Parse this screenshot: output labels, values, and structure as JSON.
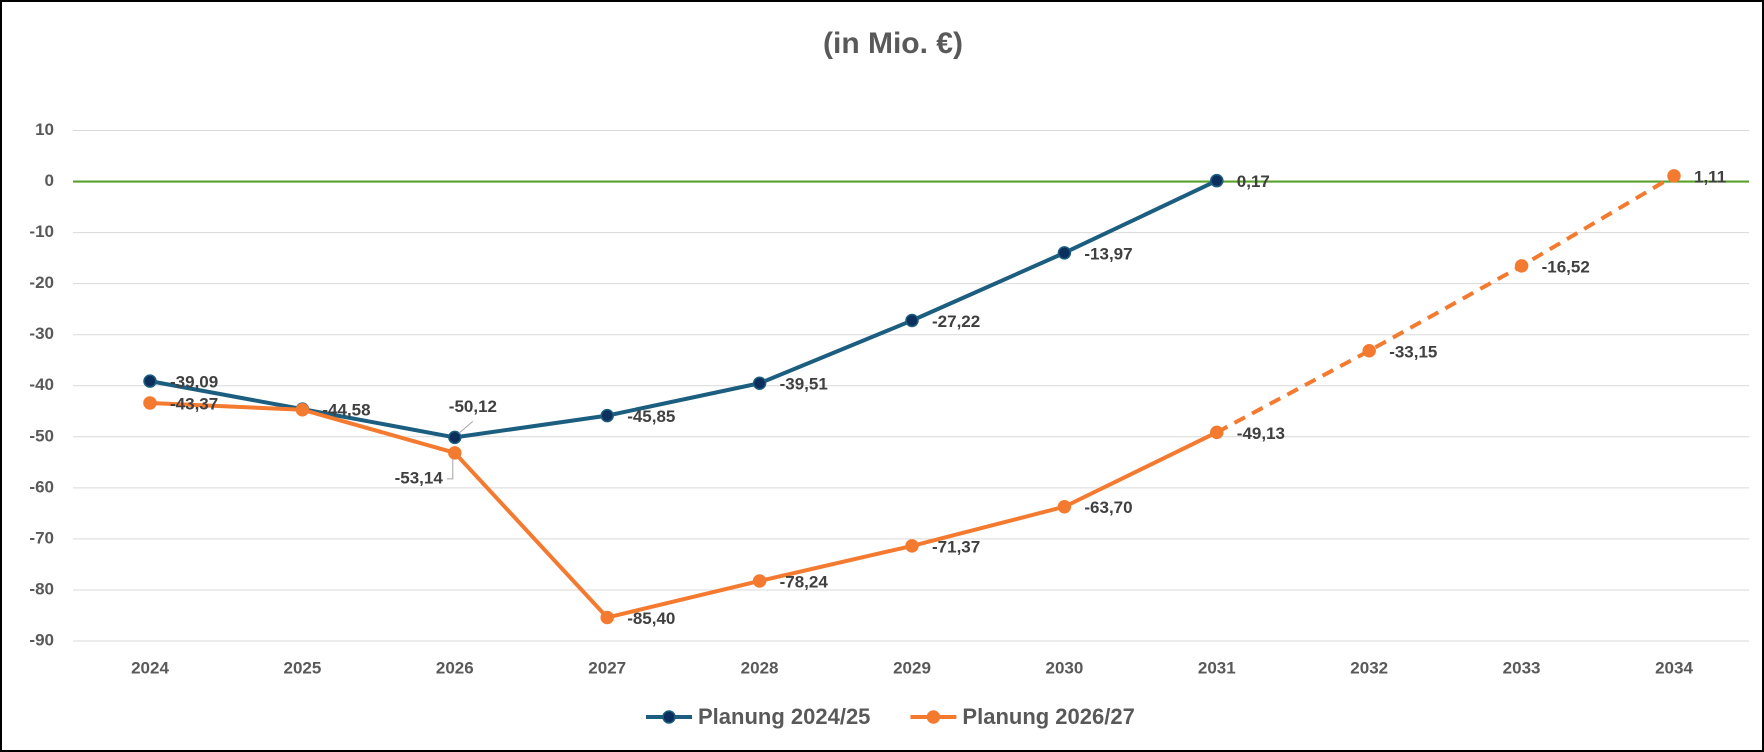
{
  "chart_data": {
    "type": "line",
    "title": "(in Mio. €)",
    "categories": [
      "2024",
      "2025",
      "2026",
      "2027",
      "2028",
      "2029",
      "2030",
      "2031",
      "2032",
      "2033",
      "2034"
    ],
    "series": [
      {
        "name": "Planung 2024/25",
        "color": "#1b5e80",
        "marker_color": "#0d2f5e",
        "values": [
          -39.09,
          -44.58,
          -50.12,
          -45.85,
          -39.51,
          -27.22,
          -13.97,
          0.17,
          null,
          null,
          null
        ],
        "value_labels": [
          "-39,09",
          "-44,58",
          "-50,12",
          "-45,85",
          "-39,51",
          "-27,22",
          "-13,97",
          "0,17",
          null,
          null,
          null
        ]
      },
      {
        "name": "Planung 2026/27",
        "color": "#f47a30",
        "marker_color": "#f47a30",
        "dash_from": "2031",
        "values": [
          -43.37,
          -44.7,
          -53.14,
          -85.4,
          -78.24,
          -71.37,
          -63.7,
          -49.13,
          -33.15,
          -16.52,
          1.11
        ],
        "value_labels": [
          "-43,37",
          null,
          "-53,14",
          "-85,40",
          "-78,24",
          "-71,37",
          "-63,70",
          "-49,13",
          "-33,15",
          "-16,52",
          "1,11"
        ]
      }
    ],
    "ylim": [
      -90,
      10
    ],
    "yticks": [
      10,
      0,
      -10,
      -20,
      -30,
      -40,
      -50,
      -60,
      -70,
      -80,
      -90
    ],
    "grid": true,
    "zero_line_color": "#5aa02c",
    "legend": "bottom"
  }
}
